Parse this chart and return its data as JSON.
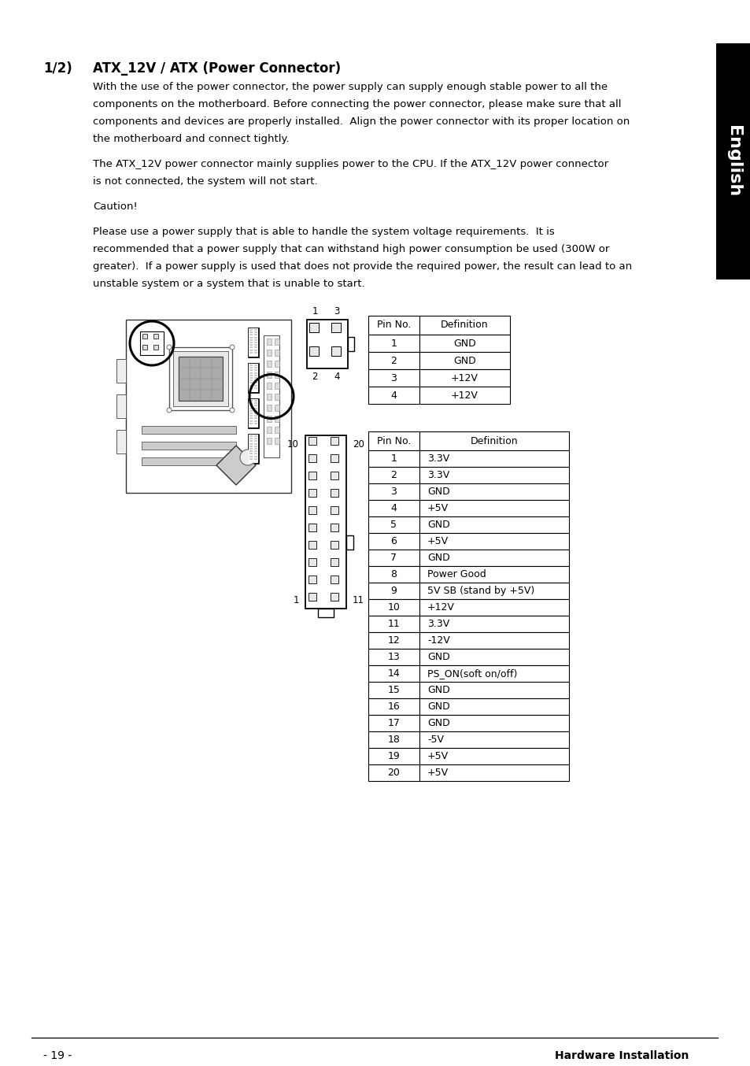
{
  "title_num": "1/2)",
  "title_text": "ATX_12V / ATX (Power Connector)",
  "para1_lines": [
    "With the use of the power connector, the power supply can supply enough stable power to all the",
    "components on the motherboard. Before connecting the power connector, please make sure that all",
    "components and devices are properly installed.  Align the power connector with its proper location on",
    "the motherboard and connect tightly."
  ],
  "para2_lines": [
    "The ATX_12V power connector mainly supplies power to the CPU. If the ATX_12V power connector",
    "is not connected, the system will not start."
  ],
  "para3_lines": [
    "Caution!"
  ],
  "para4_lines": [
    "Please use a power supply that is able to handle the system voltage requirements.  It is",
    "recommended that a power supply that can withstand high power consumption be used (300W or",
    "greater).  If a power supply is used that does not provide the required power, the result can lead to an",
    "unstable system or a system that is unable to start."
  ],
  "table1_header": [
    "Pin No.",
    "Definition"
  ],
  "table1_data": [
    [
      "1",
      "GND"
    ],
    [
      "2",
      "GND"
    ],
    [
      "3",
      "+12V"
    ],
    [
      "4",
      "+12V"
    ]
  ],
  "table2_header": [
    "Pin No.",
    "Definition"
  ],
  "table2_data": [
    [
      "1",
      "3.3V"
    ],
    [
      "2",
      "3.3V"
    ],
    [
      "3",
      "GND"
    ],
    [
      "4",
      "+5V"
    ],
    [
      "5",
      "GND"
    ],
    [
      "6",
      "+5V"
    ],
    [
      "7",
      "GND"
    ],
    [
      "8",
      "Power Good"
    ],
    [
      "9",
      "5V SB (stand by +5V)"
    ],
    [
      "10",
      "+12V"
    ],
    [
      "11",
      "3.3V"
    ],
    [
      "12",
      "-12V"
    ],
    [
      "13",
      "GND"
    ],
    [
      "14",
      "PS_ON(soft on/off)"
    ],
    [
      "15",
      "GND"
    ],
    [
      "16",
      "GND"
    ],
    [
      "17",
      "GND"
    ],
    [
      "18",
      "-5V"
    ],
    [
      "19",
      "+5V"
    ],
    [
      "20",
      "+5V"
    ]
  ],
  "footer_left": "- 19 -",
  "footer_right": "Hardware Installation",
  "sidebar_text": "English"
}
